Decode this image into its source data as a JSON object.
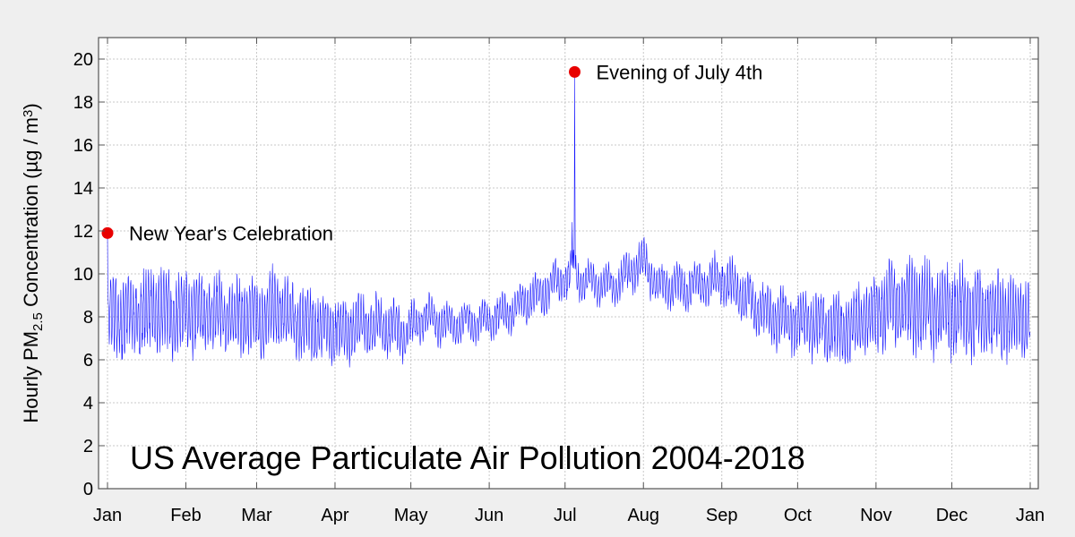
{
  "chart_data": {
    "type": "line",
    "title": "US Average Particulate Air Pollution 2004-2018",
    "ylabel_parts": {
      "prefix": "Hourly PM",
      "subscript": "2.5",
      "middle": " Concentration (µg / m",
      "superscript": "3",
      "suffix": ")"
    },
    "xlabel": "",
    "x_unit": "day of year",
    "xlim": [
      0,
      365
    ],
    "ylim": [
      0,
      21
    ],
    "y_ticks": [
      0,
      2,
      4,
      6,
      8,
      10,
      12,
      14,
      16,
      18,
      20
    ],
    "x_ticks": [
      {
        "day": 0,
        "label": "Jan"
      },
      {
        "day": 31,
        "label": "Feb"
      },
      {
        "day": 59,
        "label": "Mar"
      },
      {
        "day": 90,
        "label": "Apr"
      },
      {
        "day": 120,
        "label": "May"
      },
      {
        "day": 151,
        "label": "Jun"
      },
      {
        "day": 181,
        "label": "Jul"
      },
      {
        "day": 212,
        "label": "Aug"
      },
      {
        "day": 243,
        "label": "Sep"
      },
      {
        "day": 273,
        "label": "Oct"
      },
      {
        "day": 304,
        "label": "Nov"
      },
      {
        "day": 334,
        "label": "Dec"
      },
      {
        "day": 365,
        "label": "Jan"
      }
    ],
    "grid": true,
    "line_color": "#1a1aff",
    "marker_color": "#e80000",
    "series": [
      {
        "name": "Hourly PM2.5",
        "sampling": "hourly, approximated as daily mean with daily amplitude",
        "daily_profile": [
          {
            "day": 0,
            "mean": 7.9,
            "amplitude": 1.0
          },
          {
            "day": 2,
            "mean": 7.9,
            "amplitude": 1.6
          },
          {
            "day": 10,
            "mean": 8.1,
            "amplitude": 1.5
          },
          {
            "day": 20,
            "mean": 8.3,
            "amplitude": 1.4
          },
          {
            "day": 30,
            "mean": 8.1,
            "amplitude": 1.4
          },
          {
            "day": 40,
            "mean": 8.2,
            "amplitude": 1.3
          },
          {
            "day": 50,
            "mean": 8.0,
            "amplitude": 1.3
          },
          {
            "day": 60,
            "mean": 7.9,
            "amplitude": 1.3
          },
          {
            "day": 66,
            "mean": 8.4,
            "amplitude": 1.3
          },
          {
            "day": 75,
            "mean": 7.8,
            "amplitude": 1.2
          },
          {
            "day": 90,
            "mean": 7.3,
            "amplitude": 1.1
          },
          {
            "day": 100,
            "mean": 7.6,
            "amplitude": 1.0
          },
          {
            "day": 110,
            "mean": 7.6,
            "amplitude": 0.9
          },
          {
            "day": 118,
            "mean": 7.2,
            "amplitude": 0.8
          },
          {
            "day": 125,
            "mean": 8.0,
            "amplitude": 0.7
          },
          {
            "day": 135,
            "mean": 7.6,
            "amplitude": 0.6
          },
          {
            "day": 150,
            "mean": 7.8,
            "amplitude": 0.6
          },
          {
            "day": 160,
            "mean": 8.3,
            "amplitude": 0.6
          },
          {
            "day": 172,
            "mean": 9.2,
            "amplitude": 0.7
          },
          {
            "day": 180,
            "mean": 9.8,
            "amplitude": 0.7
          },
          {
            "day": 184,
            "mean": 9.9,
            "amplitude": 0.7
          },
          {
            "day": 190,
            "mean": 9.6,
            "amplitude": 0.6
          },
          {
            "day": 200,
            "mean": 9.4,
            "amplitude": 0.6
          },
          {
            "day": 212,
            "mean": 10.6,
            "amplitude": 0.7
          },
          {
            "day": 218,
            "mean": 9.4,
            "amplitude": 0.7
          },
          {
            "day": 230,
            "mean": 9.4,
            "amplitude": 0.7
          },
          {
            "day": 243,
            "mean": 9.8,
            "amplitude": 0.8
          },
          {
            "day": 255,
            "mean": 8.6,
            "amplitude": 0.9
          },
          {
            "day": 265,
            "mean": 8.0,
            "amplitude": 1.0
          },
          {
            "day": 280,
            "mean": 7.6,
            "amplitude": 1.1
          },
          {
            "day": 290,
            "mean": 7.3,
            "amplitude": 1.2
          },
          {
            "day": 300,
            "mean": 8.0,
            "amplitude": 1.3
          },
          {
            "day": 310,
            "mean": 8.6,
            "amplitude": 1.5
          },
          {
            "day": 325,
            "mean": 8.4,
            "amplitude": 1.6
          },
          {
            "day": 345,
            "mean": 8.2,
            "amplitude": 1.5
          },
          {
            "day": 360,
            "mean": 7.9,
            "amplitude": 1.4
          },
          {
            "day": 365,
            "mean": 8.0,
            "amplitude": 1.3
          }
        ],
        "spikes": [
          {
            "day": 0.0,
            "value": 11.9
          },
          {
            "day": 184.8,
            "value": 19.4
          },
          {
            "day": 183.8,
            "value": 12.4
          }
        ]
      }
    ],
    "annotations": [
      {
        "label": "New Year's Celebration",
        "day": 0.0,
        "value": 11.9
      },
      {
        "label": "Evening of July 4th",
        "day": 184.8,
        "value": 19.4
      }
    ]
  }
}
